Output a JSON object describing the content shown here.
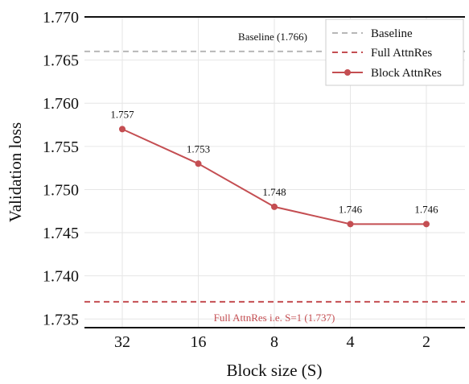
{
  "chart_data": {
    "type": "line",
    "x": [
      "32",
      "16",
      "8",
      "4",
      "2"
    ],
    "xlabel": "Block size (S)",
    "ylabel": "Validation loss",
    "ylim": [
      1.734,
      1.77
    ],
    "yticks": [
      "1.735",
      "1.740",
      "1.745",
      "1.750",
      "1.755",
      "1.760",
      "1.765",
      "1.770"
    ],
    "grid": true,
    "legend_position": "top-right",
    "series": [
      {
        "name": "Block AttnRes",
        "values": [
          1.757,
          1.753,
          1.748,
          1.746,
          1.746
        ],
        "labels": [
          "1.757",
          "1.753",
          "1.748",
          "1.746",
          "1.746"
        ],
        "color": "#c44e52",
        "style": "solid-marker"
      }
    ],
    "reference_lines": [
      {
        "name": "Baseline",
        "value": 1.766,
        "color": "#b8b8b8",
        "style": "dashed",
        "annotation": "Baseline (1.766)"
      },
      {
        "name": "Full AttnRes",
        "value": 1.737,
        "color": "#c44e52",
        "style": "dashed",
        "annotation": "Full AttnRes i.e. S=1 (1.737)"
      }
    ],
    "legend": [
      "Baseline",
      "Full AttnRes",
      "Block AttnRes"
    ]
  }
}
